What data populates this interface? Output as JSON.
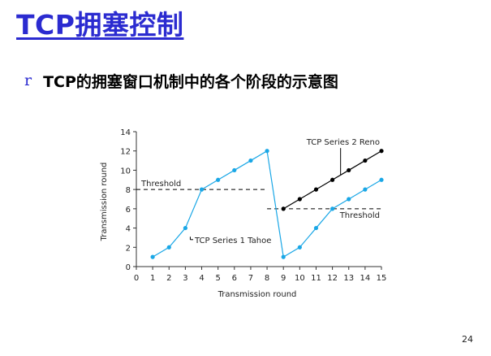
{
  "slide": {
    "title": "TCP拥塞控制",
    "bullet_mark": "r",
    "bullet_text": "TCP的拥塞窗口机制中的各个阶段的示意图",
    "page_number": "24"
  },
  "colors": {
    "title": "#2b2bd0",
    "tahoe": "#1aa7e6",
    "reno": "#000000",
    "axis": "#333333"
  },
  "chart_data": {
    "type": "line",
    "title": "",
    "xlabel": "Transmission round",
    "ylabel": "Transmission round",
    "xlim": [
      0,
      15
    ],
    "ylim": [
      0,
      14
    ],
    "x_ticks": [
      0,
      1,
      2,
      3,
      4,
      5,
      6,
      7,
      8,
      9,
      10,
      11,
      12,
      13,
      14,
      15
    ],
    "y_ticks": [
      0,
      2,
      4,
      6,
      8,
      10,
      12,
      14
    ],
    "series": [
      {
        "name": "TCP Series 1 Tahoe",
        "x": [
          1,
          2,
          3,
          4,
          5,
          6,
          7,
          8,
          9,
          10,
          11,
          12,
          13,
          14,
          15
        ],
        "y": [
          1,
          2,
          4,
          8,
          9,
          10,
          11,
          12,
          1,
          2,
          4,
          6,
          7,
          8,
          9
        ]
      },
      {
        "name": "TCP Series 2 Reno",
        "x": [
          9,
          10,
          11,
          12,
          13,
          14,
          15
        ],
        "y": [
          6,
          7,
          8,
          9,
          10,
          11,
          12
        ]
      }
    ],
    "thresholds": [
      {
        "label": "Threshold",
        "value": 8,
        "x_range": [
          0,
          8
        ]
      },
      {
        "label": "Threshold",
        "value": 6,
        "x_range": [
          8,
          15
        ]
      }
    ]
  }
}
